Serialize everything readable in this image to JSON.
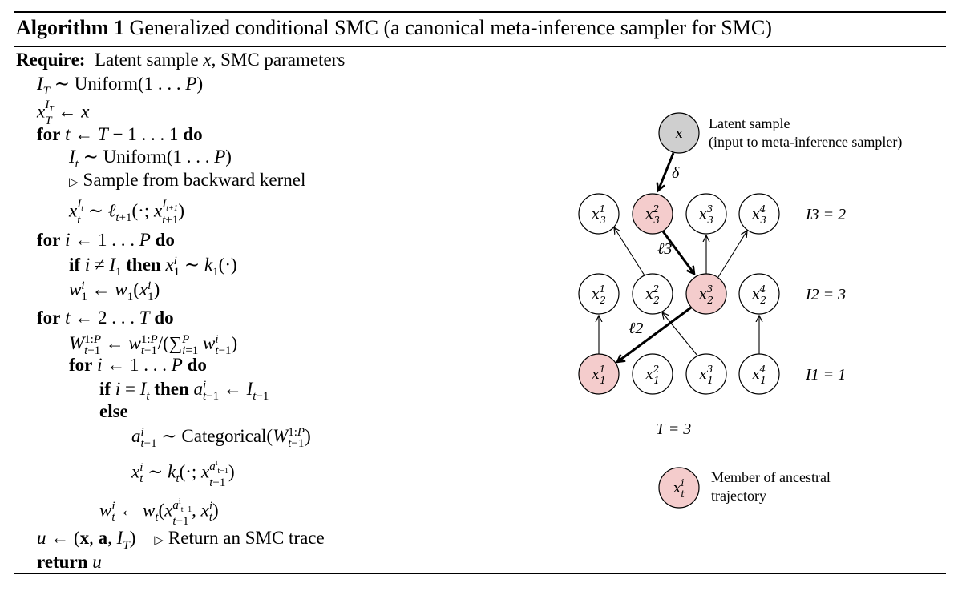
{
  "algorithm": {
    "title_bold": "Algorithm 1",
    "title_rest": "Generalized conditional SMC (a canonical meta-inference sampler for SMC)",
    "require_label": "Require:",
    "require_text": "Latent sample x, SMC parameters",
    "lines": [
      "I_T ~ Uniform(1 . . . P)",
      "x_T^{I_T} ← x",
      "for t ← T − 1 . . . 1 do",
      "I_t ~ Uniform(1 . . . P)",
      "▷ Sample from backward kernel",
      "x_t^{I_t} ~ ℓ_{t+1}(·; x_{t+1}^{I_{t+1}})",
      "for i ← 1 . . . P do",
      "if i ≠ I_1 then x_1^i ~ k_1(·)",
      "w_1^i ← w_1(x_1^i)",
      "for t ← 2 . . . T do",
      "W_{t−1}^{1:P} ← w_{t−1}^{1:P}/(Σ_{i=1}^P w_{t−1}^i)",
      "for i ← 1 . . . P do",
      "if i = I_t then a_{t−1}^i ← I_{t−1}",
      "else",
      "a_{t−1}^i ~ Categorical(W_{t−1}^{1:P})",
      "x_t^i ~ k_t(·; x_{t−1}^{a_{t−1}^i})",
      "w_t^i ← w_t(x_{t−1}^{a_{t−1}^i}, x_t^i)",
      "u ← (x, a, I_T)",
      "▷ Return an SMC trace",
      "return u"
    ]
  },
  "figure": {
    "latent_label_line1": "Latent sample",
    "latent_label_line2": "(input to meta-inference sampler)",
    "latent_node": "x",
    "edge_delta": "δ",
    "edge_l3": "ℓ3",
    "edge_l2": "ℓ2",
    "row_labels": [
      "I3 = 2",
      "I2 = 3",
      "I1 = 1"
    ],
    "T_label": "T = 3",
    "legend_node": "x_t^i",
    "legend_line1": "Member of ancestral",
    "legend_line2": "trajectory",
    "highlight_color": "#f4cccc",
    "latent_color": "#cfcfcf"
  }
}
